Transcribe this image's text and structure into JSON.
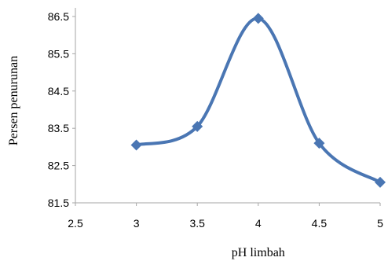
{
  "chart_data": {
    "type": "line",
    "smooth": true,
    "markers": "diamond",
    "series": [
      {
        "x": [
          3,
          3.5,
          4,
          4.5,
          5
        ],
        "values": [
          83.05,
          83.55,
          86.45,
          83.1,
          82.05
        ]
      }
    ],
    "xlabel": "pH limbah",
    "ylabel": "Persen penurunan",
    "xlim": [
      2.5,
      5
    ],
    "ylim": [
      81.5,
      86.9
    ],
    "xticks": [
      "2.5",
      "3",
      "3.5",
      "4",
      "4.5",
      "5"
    ],
    "yticks": [
      "81.5",
      "82.5",
      "83.5",
      "84.5",
      "85.5",
      "86.5"
    ],
    "grid": false,
    "legend": "none",
    "line_color": "#4a76b3",
    "marker_color": "#4a76b3",
    "axis_color": "#a6a6a6"
  }
}
